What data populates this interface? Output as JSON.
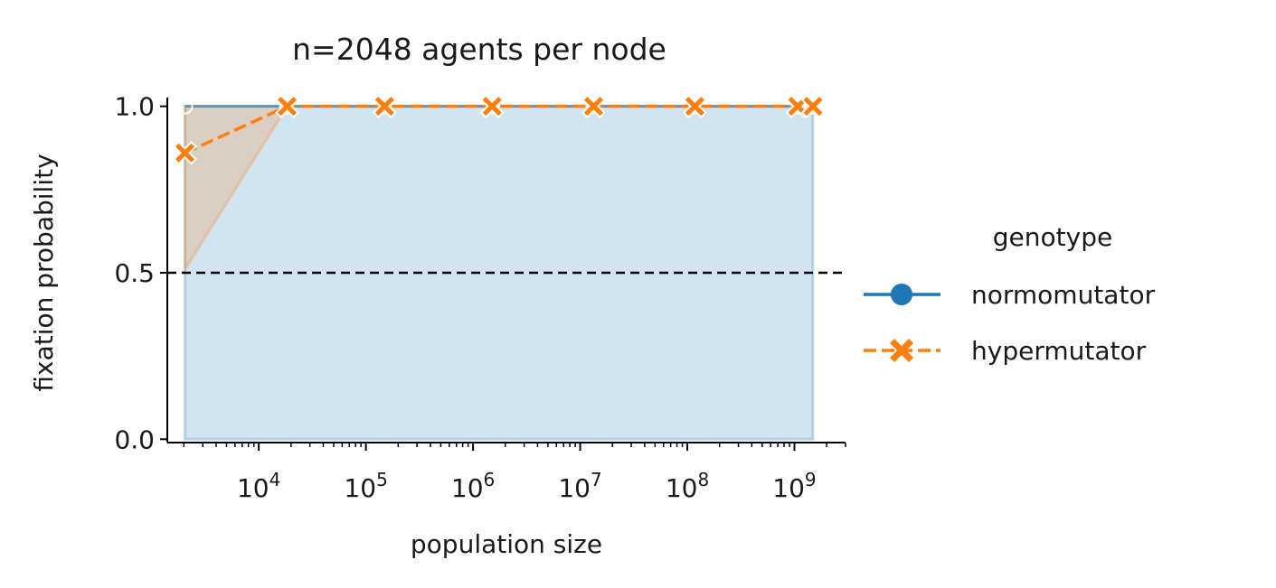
{
  "chart_data": {
    "type": "line",
    "title": "n=2048 agents per node",
    "xlabel": "population size",
    "ylabel": "fixation probability",
    "xscale": "log",
    "xlim": [
      1400,
      3000000000
    ],
    "ylim": [
      -0.01,
      1.01
    ],
    "x_major_ticks": [
      {
        "value": 10000,
        "base": "10",
        "exp": "4"
      },
      {
        "value": 100000,
        "base": "10",
        "exp": "5"
      },
      {
        "value": 1000000,
        "base": "10",
        "exp": "6"
      },
      {
        "value": 10000000,
        "base": "10",
        "exp": "7"
      },
      {
        "value": 100000000,
        "base": "10",
        "exp": "8"
      },
      {
        "value": 1000000000,
        "base": "10",
        "exp": "9"
      }
    ],
    "y_ticks": [
      {
        "value": 0.0,
        "label": "0.0"
      },
      {
        "value": 0.5,
        "label": "0.5"
      },
      {
        "value": 1.0,
        "label": "1.0"
      }
    ],
    "reference_line": {
      "y": 0.5,
      "style": "dashed",
      "color": "#000000"
    },
    "legend": {
      "title": "genotype",
      "placement": "outside-right",
      "entries": [
        {
          "label": "normomutator",
          "color": "#1f77b4",
          "marker": "circle",
          "linestyle": "solid"
        },
        {
          "label": "hypermutator",
          "color": "#ff7f0e",
          "marker": "x",
          "linestyle": "dashed"
        }
      ]
    },
    "series": [
      {
        "name": "normomutator",
        "color": "#1f77b4",
        "x": [
          2048,
          18432,
          149504,
          1507328,
          13369344,
          117637120,
          1073741824,
          1490000000
        ],
        "y": [
          1.0,
          1.0,
          1.0,
          1.0,
          1.0,
          1.0,
          1.0,
          1.0
        ],
        "ci_low": [
          0.0,
          0.0,
          0.0,
          0.0,
          0.0,
          0.0,
          0.0,
          0.0
        ],
        "ci_high": [
          1.0,
          1.0,
          1.0,
          1.0,
          1.0,
          1.0,
          1.0,
          1.0
        ]
      },
      {
        "name": "hypermutator",
        "color": "#ff7f0e",
        "x": [
          2048,
          18432,
          149504,
          1507328,
          13369344,
          117637120,
          1073741824,
          1490000000
        ],
        "y": [
          0.86,
          1.0,
          1.0,
          1.0,
          1.0,
          1.0,
          1.0,
          1.0
        ],
        "ci_low": [
          0.51,
          1.0,
          1.0,
          1.0,
          1.0,
          1.0,
          1.0,
          1.0
        ],
        "ci_high": [
          1.0,
          1.0,
          1.0,
          1.0,
          1.0,
          1.0,
          1.0,
          1.0
        ]
      }
    ],
    "grid": false
  }
}
